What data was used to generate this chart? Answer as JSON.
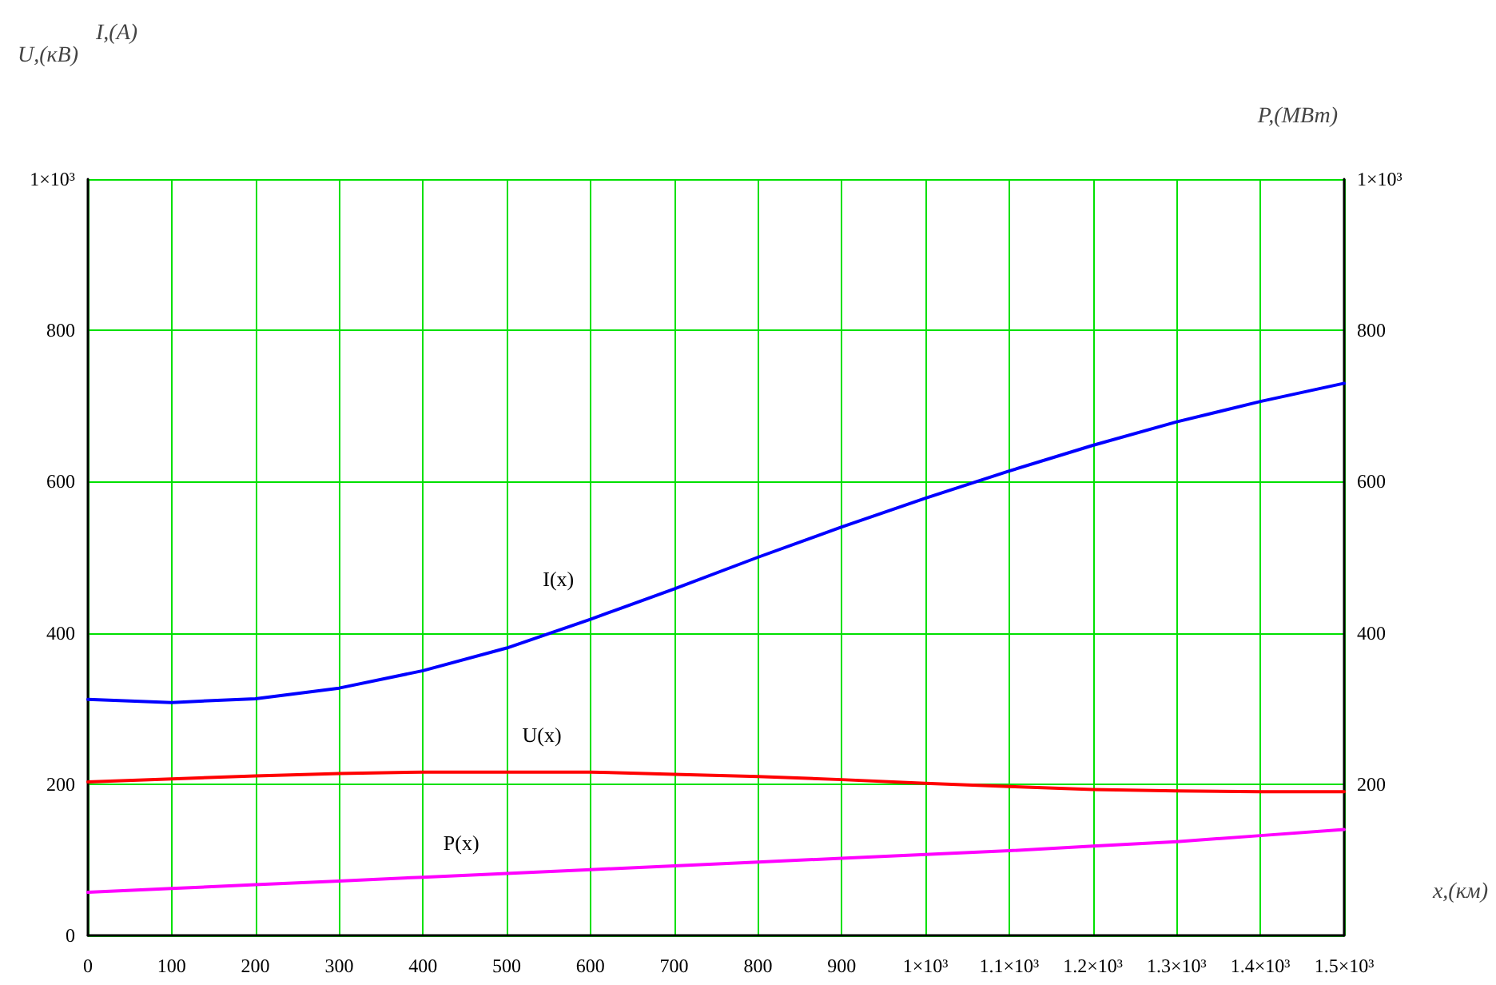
{
  "chart_data": {
    "type": "line",
    "xlabel": "x,(км)",
    "ylabel": "U,(кВ)",
    "y2label": "P,(МВт)",
    "annotations": [
      "I,(А)"
    ],
    "x": [
      0,
      100,
      200,
      300,
      400,
      500,
      600,
      700,
      800,
      900,
      1000,
      1100,
      1200,
      1300,
      1400,
      1500
    ],
    "series": [
      {
        "name": "I(x)",
        "color": "#0000ff",
        "values": [
          312,
          308,
          313,
          327,
          350,
          380,
          418,
          458,
          500,
          540,
          578,
          614,
          648,
          679,
          706,
          730
        ]
      },
      {
        "name": "U(x)",
        "color": "#ff0000",
        "values": [
          203,
          207,
          211,
          214,
          216,
          216,
          216,
          213,
          210,
          206,
          201,
          197,
          193,
          191,
          190,
          190
        ]
      },
      {
        "name": "P(x)",
        "color": "#ff00ff",
        "values": [
          57,
          62,
          67,
          72,
          77,
          82,
          87,
          92,
          97,
          102,
          107,
          112,
          118,
          124,
          132,
          140
        ]
      }
    ],
    "xlim": [
      0,
      1500
    ],
    "xticks": [
      0,
      100,
      200,
      300,
      400,
      500,
      600,
      700,
      800,
      900,
      {
        "value": 1000,
        "label": "1×10³"
      },
      {
        "value": 1100,
        "label": "1.1×10³"
      },
      {
        "value": 1200,
        "label": "1.2×10³"
      },
      {
        "value": 1300,
        "label": "1.3×10³"
      },
      {
        "value": 1400,
        "label": "1.4×10³"
      },
      {
        "value": 1500,
        "label": "1.5×10³"
      }
    ],
    "ylim": [
      0,
      1000
    ],
    "yticks": [
      0,
      200,
      400,
      600,
      800,
      {
        "value": 1000,
        "label": "1×10³"
      }
    ],
    "y2lim": [
      0,
      1000
    ],
    "y2ticks": [
      200,
      400,
      600,
      800,
      {
        "value": 1000,
        "label": "1×10³"
      }
    ],
    "grid": true,
    "legend": false,
    "marker": "none",
    "line_style": "solid"
  }
}
